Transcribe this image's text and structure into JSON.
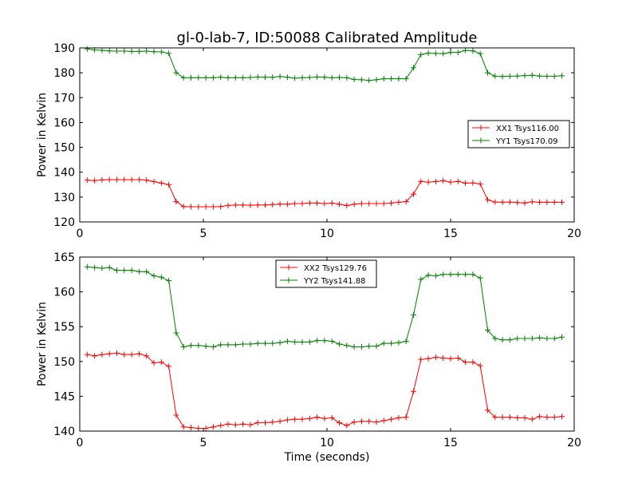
{
  "chart_data": [
    {
      "type": "line",
      "title": "gl-0-lab-7, ID:50088 Calibrated Amplitude",
      "xlabel": "",
      "ylabel": "Power in Kelvin",
      "xlim": [
        0,
        20
      ],
      "ylim": [
        120,
        190
      ],
      "xticks": [
        0,
        5,
        10,
        15,
        20
      ],
      "yticks": [
        120,
        130,
        140,
        150,
        160,
        170,
        180,
        190
      ],
      "grid": false,
      "legend_position": "center-right",
      "x": [
        0.3,
        0.6,
        0.9,
        1.2,
        1.5,
        1.8,
        2.1,
        2.4,
        2.7,
        3.0,
        3.3,
        3.6,
        3.9,
        4.2,
        4.5,
        4.8,
        5.1,
        5.4,
        5.7,
        6.0,
        6.3,
        6.6,
        6.9,
        7.2,
        7.5,
        7.8,
        8.1,
        8.4,
        8.7,
        9.0,
        9.3,
        9.6,
        9.9,
        10.2,
        10.5,
        10.8,
        11.1,
        11.4,
        11.7,
        12.0,
        12.3,
        12.6,
        12.9,
        13.2,
        13.5,
        13.8,
        14.1,
        14.4,
        14.7,
        15.0,
        15.3,
        15.6,
        15.9,
        16.2,
        16.5,
        16.8,
        17.1,
        17.4,
        17.7,
        18.0,
        18.3,
        18.6,
        18.9,
        19.2,
        19.5
      ],
      "series": [
        {
          "name": "XX1 Tsys116.00",
          "color": "#ff0000",
          "values": [
            136.8,
            136.6,
            136.9,
            137.0,
            137.0,
            137.0,
            137.0,
            137.0,
            136.8,
            136.2,
            135.6,
            135.0,
            128.2,
            126.2,
            126.1,
            126.1,
            126.1,
            126.1,
            126.2,
            126.6,
            126.8,
            126.8,
            126.7,
            126.8,
            126.8,
            127.0,
            127.2,
            127.1,
            127.4,
            127.4,
            127.6,
            127.6,
            127.4,
            127.6,
            127.1,
            126.6,
            127.1,
            127.4,
            127.4,
            127.4,
            127.4,
            127.6,
            127.9,
            128.2,
            131.2,
            136.3,
            136.0,
            136.2,
            136.6,
            136.0,
            136.3,
            135.6,
            135.7,
            135.3,
            128.9,
            128.0,
            127.9,
            128.0,
            127.8,
            127.6,
            128.1,
            127.9,
            127.9,
            127.9,
            127.9
          ]
        },
        {
          "name": "YY1 Tsys170.09",
          "color": "#008000",
          "values": [
            189.6,
            189.2,
            189.0,
            188.8,
            188.7,
            188.7,
            188.6,
            188.6,
            188.7,
            188.5,
            188.4,
            187.8,
            180.0,
            178.0,
            178.0,
            178.0,
            178.0,
            178.0,
            178.2,
            178.0,
            178.0,
            178.0,
            178.1,
            178.3,
            178.2,
            178.2,
            178.5,
            178.2,
            177.8,
            178.0,
            178.1,
            178.3,
            178.2,
            178.0,
            178.1,
            178.0,
            177.3,
            177.2,
            176.9,
            177.2,
            177.6,
            177.6,
            177.6,
            177.6,
            182.0,
            187.3,
            187.9,
            187.8,
            187.7,
            188.2,
            188.2,
            189.0,
            188.8,
            187.7,
            180.0,
            178.6,
            178.5,
            178.6,
            178.7,
            178.9,
            179.0,
            178.7,
            178.6,
            178.6,
            178.8
          ]
        }
      ]
    },
    {
      "type": "line",
      "title": "",
      "xlabel": "Time (seconds)",
      "ylabel": "Power in Kelvin",
      "xlim": [
        0,
        20
      ],
      "ylim": [
        140,
        165
      ],
      "xticks": [
        0,
        5,
        10,
        15,
        20
      ],
      "yticks": [
        140,
        145,
        150,
        155,
        160,
        165
      ],
      "grid": false,
      "legend_position": "upper-center",
      "x": [
        0.3,
        0.6,
        0.9,
        1.2,
        1.5,
        1.8,
        2.1,
        2.4,
        2.7,
        3.0,
        3.3,
        3.6,
        3.9,
        4.2,
        4.5,
        4.8,
        5.1,
        5.4,
        5.7,
        6.0,
        6.3,
        6.6,
        6.9,
        7.2,
        7.5,
        7.8,
        8.1,
        8.4,
        8.7,
        9.0,
        9.3,
        9.6,
        9.9,
        10.2,
        10.5,
        10.8,
        11.1,
        11.4,
        11.7,
        12.0,
        12.3,
        12.6,
        12.9,
        13.2,
        13.5,
        13.8,
        14.1,
        14.4,
        14.7,
        15.0,
        15.3,
        15.6,
        15.9,
        16.2,
        16.5,
        16.8,
        17.1,
        17.4,
        17.7,
        18.0,
        18.3,
        18.6,
        18.9,
        19.2,
        19.5
      ],
      "series": [
        {
          "name": "XX2 Tsys129.76",
          "color": "#ff0000",
          "values": [
            151.0,
            150.8,
            151.0,
            151.1,
            151.2,
            151.0,
            151.0,
            151.1,
            150.8,
            149.8,
            149.9,
            149.3,
            142.3,
            140.6,
            140.5,
            140.4,
            140.4,
            140.6,
            140.8,
            141.0,
            140.9,
            141.0,
            140.9,
            141.2,
            141.2,
            141.3,
            141.4,
            141.6,
            141.7,
            141.7,
            141.8,
            142.0,
            141.8,
            141.9,
            141.2,
            140.8,
            141.3,
            141.4,
            141.4,
            141.3,
            141.5,
            141.7,
            141.9,
            142.0,
            145.7,
            150.3,
            150.4,
            150.6,
            150.5,
            150.4,
            150.5,
            149.9,
            149.9,
            149.4,
            143.0,
            142.0,
            142.0,
            142.0,
            141.9,
            141.9,
            141.7,
            142.1,
            142.0,
            142.0,
            142.1
          ]
        },
        {
          "name": "YY2 Tsys141.88",
          "color": "#008000",
          "values": [
            163.6,
            163.5,
            163.4,
            163.5,
            163.1,
            163.1,
            163.1,
            162.9,
            162.9,
            162.3,
            162.1,
            161.6,
            154.1,
            152.1,
            152.3,
            152.3,
            152.2,
            152.1,
            152.4,
            152.4,
            152.4,
            152.5,
            152.5,
            152.6,
            152.6,
            152.6,
            152.7,
            152.9,
            152.8,
            152.8,
            152.8,
            153.0,
            153.0,
            152.9,
            152.5,
            152.3,
            152.1,
            152.1,
            152.2,
            152.2,
            152.6,
            152.6,
            152.7,
            152.9,
            156.7,
            161.8,
            162.4,
            162.3,
            162.5,
            162.5,
            162.5,
            162.5,
            162.5,
            162.0,
            154.5,
            153.3,
            153.1,
            153.1,
            153.3,
            153.3,
            153.3,
            153.4,
            153.3,
            153.3,
            153.5
          ]
        }
      ]
    }
  ]
}
